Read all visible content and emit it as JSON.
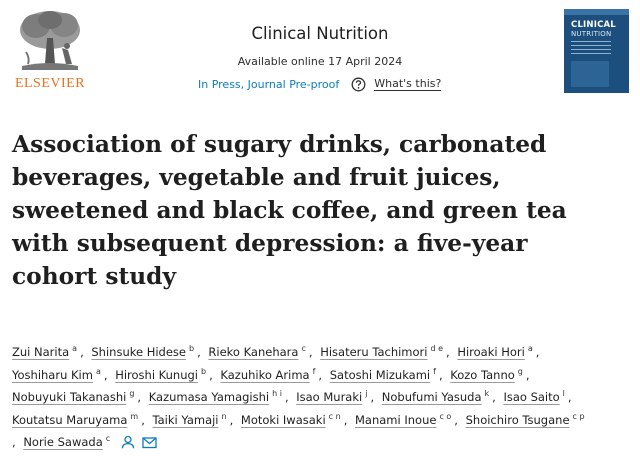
{
  "header": {
    "publisher": "ELSEVIER",
    "journal": "Clinical Nutrition",
    "available_online": "Available online 17 April 2024",
    "status": "In Press, Journal Pre-proof",
    "whats_this": "What's this?",
    "cover": {
      "title_line1": "CLINICAL",
      "title_line2": "NUTRITION"
    }
  },
  "article": {
    "title_lines": [
      "Association of sugary drinks, carbonated",
      "beverages, vegetable and fruit juices,",
      "sweetened and black coffee, and green tea",
      "with subsequent depression: a five-year",
      "cohort study"
    ]
  },
  "authors": {
    "rows": [
      [
        {
          "name": "Zui Narita",
          "aff": "a"
        },
        {
          "name": "Shinsuke Hidese",
          "aff": "b"
        },
        {
          "name": "Rieko Kanehara",
          "aff": "c"
        },
        {
          "name": "Hisateru Tachimori",
          "aff": "d e"
        },
        {
          "name": "Hiroaki Hori",
          "aff": "a"
        }
      ],
      [
        {
          "name": "Yoshiharu Kim",
          "aff": "a"
        },
        {
          "name": "Hiroshi Kunugi",
          "aff": "b"
        },
        {
          "name": "Kazuhiko Arima",
          "aff": "f"
        },
        {
          "name": "Satoshi Mizukami",
          "aff": "f"
        },
        {
          "name": "Kozo Tanno",
          "aff": "g"
        }
      ],
      [
        {
          "name": "Nobuyuki Takanashi",
          "aff": "g"
        },
        {
          "name": "Kazumasa Yamagishi",
          "aff": "h i"
        },
        {
          "name": "Isao Muraki",
          "aff": "j"
        },
        {
          "name": "Nobufumi Yasuda",
          "aff": "k"
        },
        {
          "name": "Isao Saito",
          "aff": "l"
        }
      ],
      [
        {
          "name": "Koutatsu Maruyama",
          "aff": "m"
        },
        {
          "name": "Taiki Yamaji",
          "aff": "n"
        },
        {
          "name": "Motoki Iwasaki",
          "aff": "c n"
        },
        {
          "name": "Manami Inoue",
          "aff": "c o"
        },
        {
          "name": "Shoichiro Tsugane",
          "aff": "c p"
        }
      ],
      [
        {
          "name": "Norie Sawada",
          "aff": "c"
        }
      ]
    ],
    "separator": ","
  },
  "icons": {
    "help": "help-circle-icon",
    "person": "person-icon",
    "mail": "mail-icon"
  },
  "colors": {
    "elsevier_orange": "#e9711c",
    "link_blue": "#0c7dbb",
    "cover_blue": "#1d4f7e"
  }
}
